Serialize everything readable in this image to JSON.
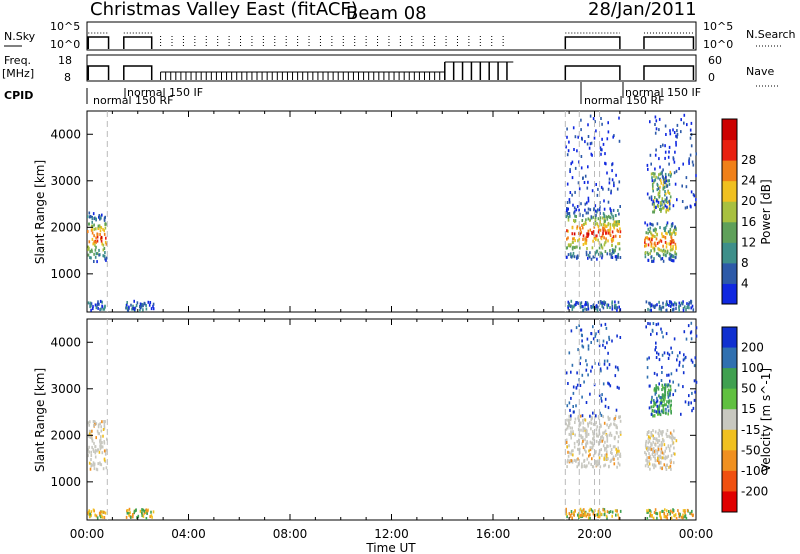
{
  "header": {
    "title": "Christmas Valley East (fitACF)",
    "beam": "Beam 08",
    "date": "28/Jan/2011"
  },
  "control_panel": {
    "nsky_label": "N.Sky",
    "nsky_ticks": [
      "10^5",
      "10^0"
    ],
    "nsearch_label": "N.Search",
    "freq_label": "Freq.",
    "freq_unit": "[MHz]",
    "freq_ticks": [
      "18",
      "8"
    ],
    "nave_label": "Nave",
    "nave_ticks": [
      "60",
      "0"
    ],
    "cpid_label": "CPID",
    "cpid_annotations": [
      {
        "text": "normal 150 IF",
        "row": "upper",
        "time": 1.6
      },
      {
        "text": "normal 150 RF",
        "row": "lower",
        "time": 0.05
      },
      {
        "text": "normal 150 IF",
        "row": "upper",
        "time": 20.25
      },
      {
        "text": "normal 150 RF",
        "row": "lower",
        "time": 19.05
      }
    ]
  },
  "chart_data": [
    {
      "type": "heatmap",
      "name": "power",
      "ylabel": "Slant Range [km]",
      "ylim": [
        180,
        4500
      ],
      "yticks": [
        "1000",
        "2000",
        "3000",
        "4000"
      ],
      "colorbar_label": "Power [dB]",
      "colorbar_ticks": [
        "4",
        "8",
        "12",
        "16",
        "20",
        "24",
        "28"
      ],
      "colorbar_colors": [
        "#1028e0",
        "#2d5aa8",
        "#3e8f8a",
        "#5fa05a",
        "#a8c040",
        "#f0c020",
        "#f08018",
        "#e82010",
        "#cc0000"
      ],
      "regions": [
        {
          "t0": 0.0,
          "t1": 0.75,
          "r0": 1250,
          "r1": 2300,
          "level": "high"
        },
        {
          "t0": 18.85,
          "t1": 21.0,
          "r0": 1300,
          "r1": 2400,
          "level": "high"
        },
        {
          "t0": 21.95,
          "t1": 23.2,
          "r0": 1250,
          "r1": 2100,
          "level": "high"
        },
        {
          "t0": 22.2,
          "t1": 23.0,
          "r0": 2300,
          "r1": 3200,
          "level": "mid"
        }
      ]
    },
    {
      "type": "heatmap",
      "name": "velocity",
      "ylabel": "Slant Range [km]",
      "xlabel": "Time UT",
      "ylim": [
        180,
        4500
      ],
      "xlim": [
        0,
        24
      ],
      "xticks": [
        "00:00",
        "04:00",
        "08:00",
        "12:00",
        "16:00",
        "20:00",
        "00:00"
      ],
      "yticks": [
        "1000",
        "2000",
        "3000",
        "4000"
      ],
      "colorbar_label": "Velocity [m s^-1]",
      "colorbar_ticks": [
        "200",
        "100",
        "50",
        "15",
        "-15",
        "-50",
        "-100",
        "-200"
      ],
      "colorbar_colors": [
        "#1030d0",
        "#3070b0",
        "#40a050",
        "#60c040",
        "#c8c8c0",
        "#f0c020",
        "#f09020",
        "#f05010",
        "#e00000"
      ],
      "regions": [
        {
          "t0": 0.0,
          "t1": 0.75,
          "r0": 1250,
          "r1": 2300,
          "level": "gray"
        },
        {
          "t0": 18.85,
          "t1": 21.0,
          "r0": 1300,
          "r1": 2400,
          "level": "gray"
        },
        {
          "t0": 21.95,
          "t1": 23.2,
          "r0": 1250,
          "r1": 2100,
          "level": "gray"
        },
        {
          "t0": 22.2,
          "t1": 23.0,
          "r0": 2400,
          "r1": 3100,
          "level": "green"
        }
      ]
    }
  ]
}
